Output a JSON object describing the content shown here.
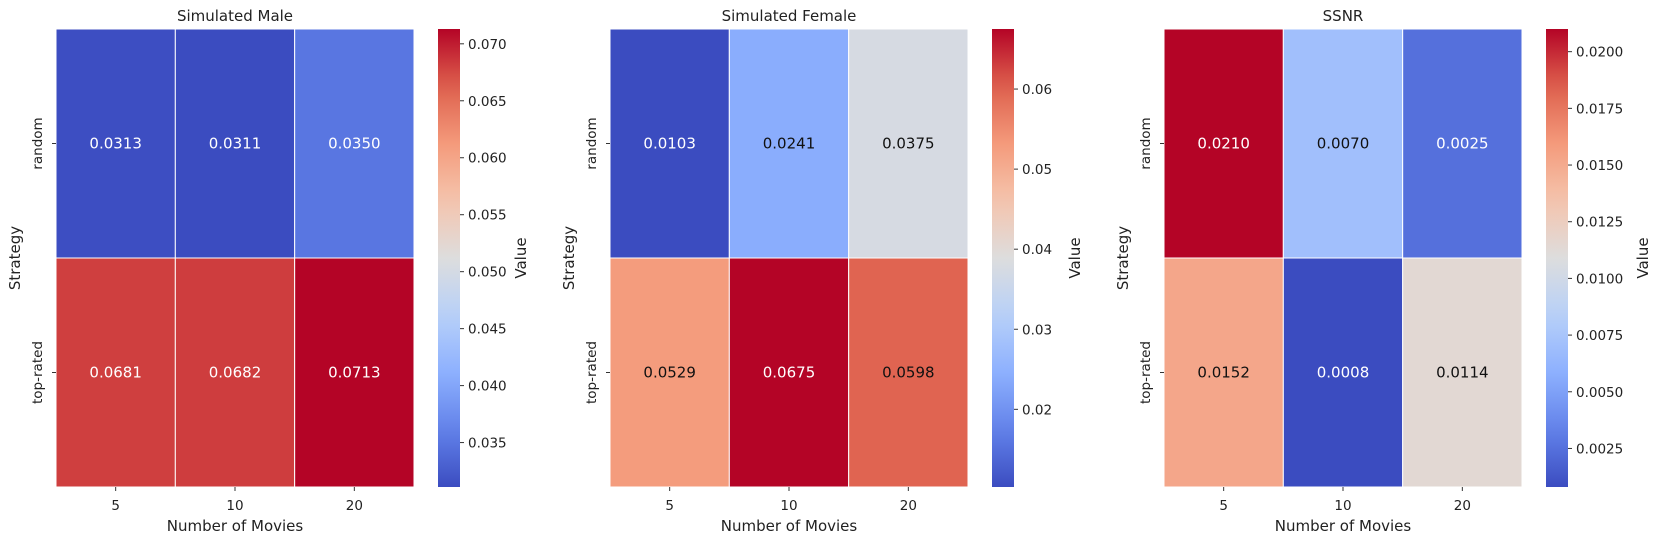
{
  "chart_data": [
    {
      "type": "heatmap",
      "title": "Simulated Male",
      "xlabel": "Number of Movies",
      "ylabel": "Strategy",
      "x_categories": [
        "5",
        "10",
        "20"
      ],
      "y_categories": [
        "random",
        "top-rated"
      ],
      "values": [
        [
          0.0313,
          0.0311,
          0.035
        ],
        [
          0.0681,
          0.0682,
          0.0713
        ]
      ],
      "cell_labels": [
        [
          "0.0313",
          "0.0311",
          "0.0350"
        ],
        [
          "0.0681",
          "0.0682",
          "0.0713"
        ]
      ],
      "colormap": "coolwarm",
      "colorbar": {
        "label": "Value",
        "vmin": 0.0311,
        "vmax": 0.0713,
        "ticks": [
          0.035,
          0.04,
          0.045,
          0.05,
          0.055,
          0.06,
          0.065,
          0.07
        ],
        "tick_labels": [
          "0.035",
          "0.040",
          "0.045",
          "0.050",
          "0.055",
          "0.060",
          "0.065",
          "0.070"
        ]
      }
    },
    {
      "type": "heatmap",
      "title": "Simulated Female",
      "xlabel": "Number of Movies",
      "ylabel": "Strategy",
      "x_categories": [
        "5",
        "10",
        "20"
      ],
      "y_categories": [
        "random",
        "top-rated"
      ],
      "values": [
        [
          0.0103,
          0.0241,
          0.0375
        ],
        [
          0.0529,
          0.0675,
          0.0598
        ]
      ],
      "cell_labels": [
        [
          "0.0103",
          "0.0241",
          "0.0375"
        ],
        [
          "0.0529",
          "0.0675",
          "0.0598"
        ]
      ],
      "colormap": "coolwarm",
      "colorbar": {
        "label": "Value",
        "vmin": 0.0103,
        "vmax": 0.0675,
        "ticks": [
          0.02,
          0.03,
          0.04,
          0.05,
          0.06
        ],
        "tick_labels": [
          "0.02",
          "0.03",
          "0.04",
          "0.05",
          "0.06"
        ]
      }
    },
    {
      "type": "heatmap",
      "title": "SSNR",
      "xlabel": "Number of Movies",
      "ylabel": "Strategy",
      "x_categories": [
        "5",
        "10",
        "20"
      ],
      "y_categories": [
        "random",
        "top-rated"
      ],
      "values": [
        [
          0.021,
          0.007,
          0.0025
        ],
        [
          0.0152,
          0.0008,
          0.0114
        ]
      ],
      "cell_labels": [
        [
          "0.0210",
          "0.0070",
          "0.0025"
        ],
        [
          "0.0152",
          "0.0008",
          "0.0114"
        ]
      ],
      "colormap": "coolwarm",
      "colorbar": {
        "label": "Value",
        "vmin": 0.0008,
        "vmax": 0.021,
        "ticks": [
          0.0025,
          0.005,
          0.0075,
          0.01,
          0.0125,
          0.015,
          0.0175,
          0.02
        ],
        "tick_labels": [
          "0.0025",
          "0.0050",
          "0.0075",
          "0.0100",
          "0.0125",
          "0.0150",
          "0.0175",
          "0.0200"
        ]
      }
    }
  ]
}
